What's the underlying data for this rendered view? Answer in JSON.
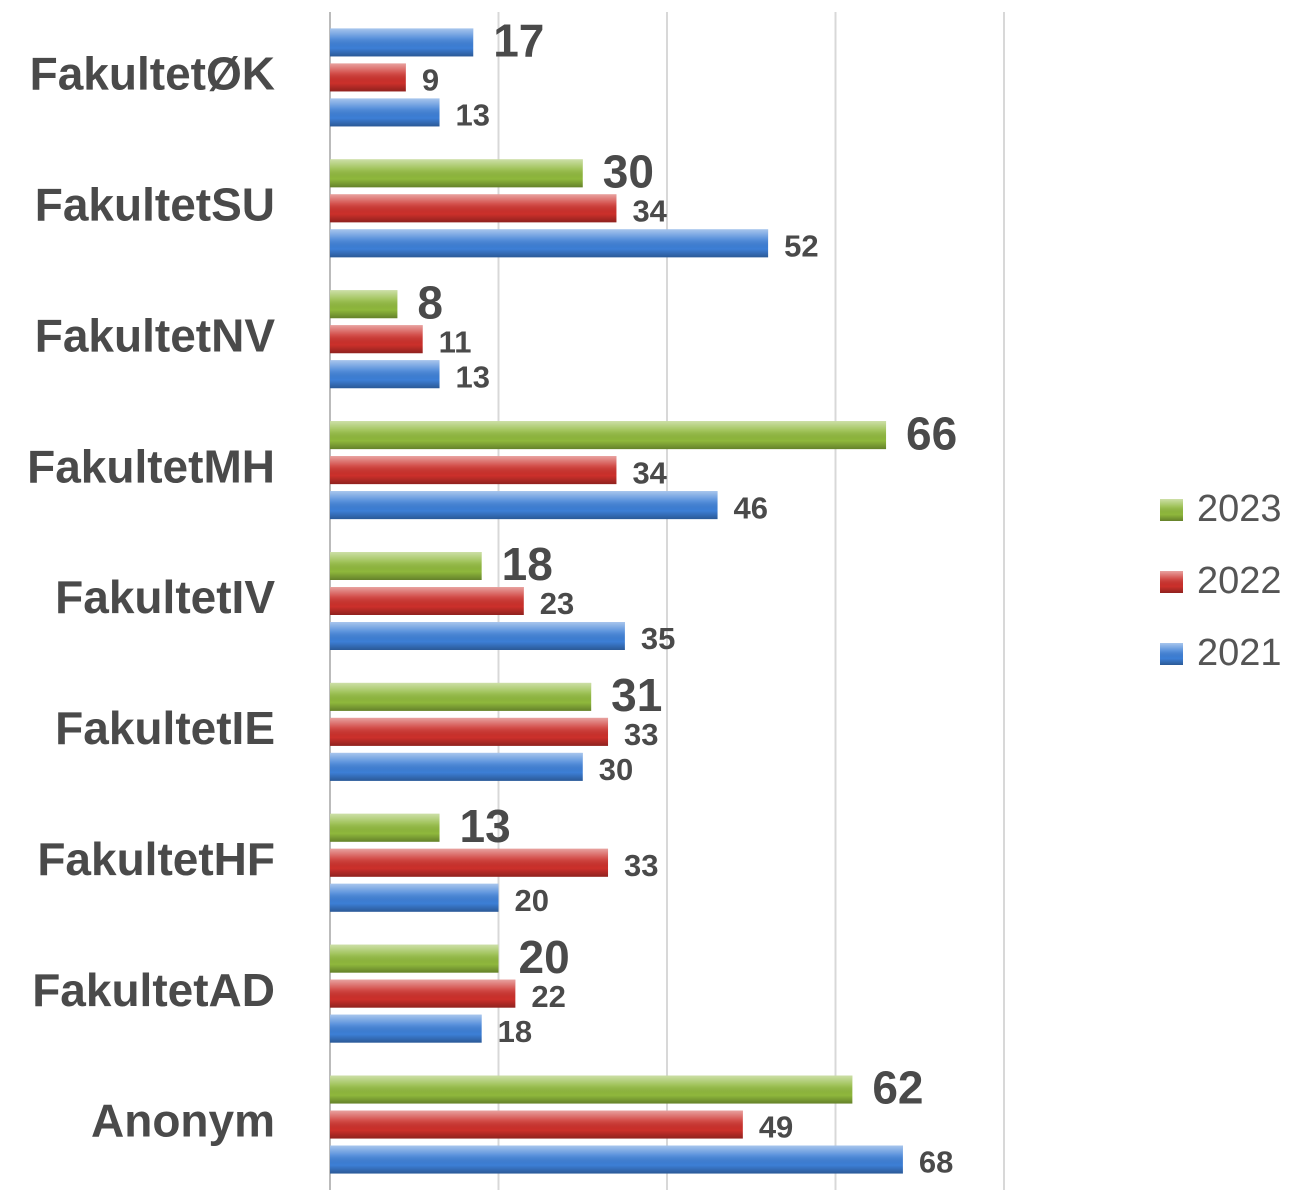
{
  "chart_data": {
    "type": "barh",
    "categories": [
      "FakultetØK",
      "FakultetSU",
      "FakultetNV",
      "FakultetMH",
      "FakultetIV",
      "FakultetIE",
      "FakultetHF",
      "FakultetAD",
      "Anonym"
    ],
    "series": [
      {
        "name": "2023",
        "color": "#8fb83c",
        "colors": [
          "#3d7fd6",
          "#8fb83c",
          "#8fb83c",
          "#8fb83c",
          "#8fb83c",
          "#8fb83c",
          "#8fb83c",
          "#8fb83c",
          "#8fb83c"
        ],
        "values": [
          17,
          30,
          8,
          66,
          18,
          31,
          13,
          20,
          62
        ]
      },
      {
        "name": "2022",
        "color": "#cc302b",
        "values": [
          9,
          34,
          11,
          34,
          23,
          33,
          33,
          22,
          49
        ]
      },
      {
        "name": "2021",
        "color": "#3d7fd6",
        "values": [
          13,
          52,
          13,
          46,
          35,
          30,
          20,
          18,
          68
        ]
      }
    ],
    "xlim": [
      0,
      80
    ],
    "xticks": [
      0,
      20,
      40,
      60,
      80
    ],
    "grid": true,
    "legend": "right"
  }
}
